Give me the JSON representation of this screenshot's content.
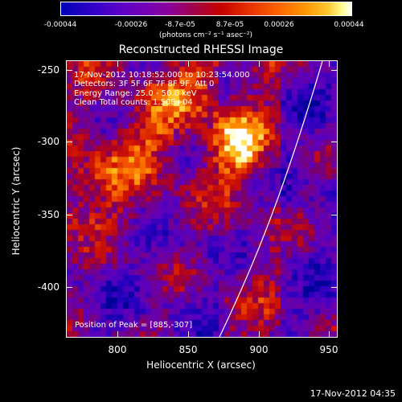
{
  "colorbar": {
    "ticks": [
      "-0.00044",
      "-0.00026",
      "-8.7e-05",
      "8.7e-05",
      "0.00026",
      "0.00044"
    ],
    "unit_label": "(photons cm⁻² s⁻¹ asec⁻²)"
  },
  "plot": {
    "title": "Reconstructed RHESSI Image",
    "xlabel": "Heliocentric X (arcsec)",
    "ylabel": "Heliocentric Y (arcsec)",
    "x_ticks": [
      "800",
      "850",
      "900",
      "950"
    ],
    "y_ticks": [
      "-250",
      "-300",
      "-350",
      "-400"
    ],
    "info": {
      "time_range": "17-Nov-2012 10:18:52.000 to 10:23:54.000",
      "detectors": "Detectors: 3F 5F 6F 7F 8F 9F, Att 0",
      "energy": "Energy Range: 25.0 - 50.0 keV",
      "algorithm": "Clean     Total counts: 1.50E+04"
    },
    "peak": "Position of Peak = [885,-307]"
  },
  "timestamp": "17-Nov-2012 04:35"
}
